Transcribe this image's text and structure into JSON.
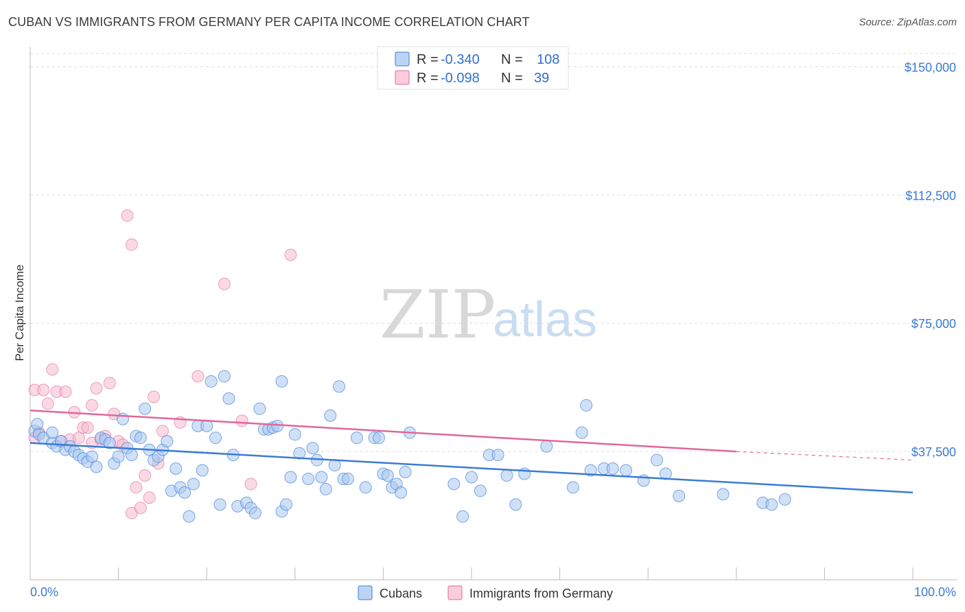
{
  "title": "CUBAN VS IMMIGRANTS FROM GERMANY PER CAPITA INCOME CORRELATION CHART",
  "source": "Source: ZipAtlas.com",
  "watermark": {
    "zip": "ZIP",
    "atlas": "atlas"
  },
  "colors": {
    "blue": "#3a7bd5",
    "blue_fill": "#a9c8f0",
    "pink": "#e0679a",
    "pink_fill": "#f6b9cd",
    "grid": "#dddddd"
  },
  "legend": {
    "rows": [
      {
        "r_label": "R =",
        "r_value": "-0.340",
        "n_label": "N =",
        "n_value": "108",
        "series": "cubans"
      },
      {
        "r_label": "R =",
        "r_value": "-0.098",
        "n_label": "N =",
        "n_value": "39",
        "series": "germany"
      }
    ]
  },
  "bottom_legend": [
    "Cubans",
    "Immigrants from Germany"
  ],
  "chart_data": {
    "type": "scatter",
    "title": "CUBAN VS IMMIGRANTS FROM GERMANY PER CAPITA INCOME CORRELATION CHART",
    "xlabel": "",
    "ylabel": "Per Capita Income",
    "xlim": [
      0,
      100
    ],
    "ylim": [
      0,
      157500
    ],
    "x_tick_labels": [
      "0.0%",
      "100.0%"
    ],
    "y_ticks": [
      37500,
      75000,
      112500,
      150000
    ],
    "y_tick_labels": [
      "$37,500",
      "$75,000",
      "$112,500",
      "$150,000"
    ],
    "grid": true,
    "legend_position": "top-center",
    "series": [
      {
        "name": "Cubans",
        "color": "#3a7bd5",
        "trend": {
          "x": [
            0,
            100
          ],
          "y": [
            40000,
            25500
          ]
        },
        "points": [
          [
            0.5,
            43500
          ],
          [
            0.8,
            45500
          ],
          [
            1.0,
            42500
          ],
          [
            1.5,
            41500
          ],
          [
            2.5,
            40000
          ],
          [
            2.5,
            43000
          ],
          [
            3.0,
            39000
          ],
          [
            3.5,
            40500
          ],
          [
            4.0,
            38000
          ],
          [
            4.5,
            39000
          ],
          [
            5.0,
            37500
          ],
          [
            5.5,
            36500
          ],
          [
            6.0,
            35500
          ],
          [
            6.5,
            34500
          ],
          [
            7.0,
            36000
          ],
          [
            7.5,
            33000
          ],
          [
            8.0,
            41500
          ],
          [
            8.5,
            41000
          ],
          [
            9.0,
            40000
          ],
          [
            9.5,
            34000
          ],
          [
            10.0,
            36000
          ],
          [
            10.5,
            47000
          ],
          [
            11.0,
            38500
          ],
          [
            11.5,
            36500
          ],
          [
            12.0,
            42000
          ],
          [
            12.5,
            41500
          ],
          [
            13.0,
            50000
          ],
          [
            13.5,
            38000
          ],
          [
            14.0,
            35000
          ],
          [
            14.5,
            36000
          ],
          [
            15.0,
            38000
          ],
          [
            15.5,
            40500
          ],
          [
            16.0,
            26000
          ],
          [
            16.5,
            32500
          ],
          [
            17.0,
            27000
          ],
          [
            17.5,
            25500
          ],
          [
            18.0,
            18500
          ],
          [
            18.5,
            28000
          ],
          [
            19.0,
            45000
          ],
          [
            19.5,
            32000
          ],
          [
            20.0,
            45000
          ],
          [
            20.5,
            58000
          ],
          [
            21.0,
            41500
          ],
          [
            21.5,
            22000
          ],
          [
            22.0,
            59500
          ],
          [
            22.5,
            53000
          ],
          [
            23.0,
            36500
          ],
          [
            23.5,
            21500
          ],
          [
            24.5,
            22500
          ],
          [
            25.0,
            21000
          ],
          [
            25.5,
            19500
          ],
          [
            26.0,
            50000
          ],
          [
            26.5,
            44000
          ],
          [
            27.0,
            44000
          ],
          [
            27.5,
            44500
          ],
          [
            28.0,
            45000
          ],
          [
            28.5,
            58000
          ],
          [
            28.5,
            20000
          ],
          [
            29.0,
            22000
          ],
          [
            29.5,
            30000
          ],
          [
            30.0,
            42500
          ],
          [
            30.5,
            37000
          ],
          [
            31.5,
            29500
          ],
          [
            32.0,
            38500
          ],
          [
            32.5,
            35000
          ],
          [
            33.0,
            30000
          ],
          [
            33.5,
            26500
          ],
          [
            34.0,
            48000
          ],
          [
            34.5,
            33500
          ],
          [
            35.0,
            56500
          ],
          [
            35.5,
            29500
          ],
          [
            36.0,
            29500
          ],
          [
            37.0,
            41500
          ],
          [
            38.0,
            27000
          ],
          [
            39.0,
            41500
          ],
          [
            39.5,
            41500
          ],
          [
            40.0,
            31000
          ],
          [
            40.5,
            30500
          ],
          [
            41.0,
            27000
          ],
          [
            41.5,
            28000
          ],
          [
            42.0,
            25500
          ],
          [
            42.5,
            31500
          ],
          [
            43.0,
            43000
          ],
          [
            48.0,
            28000
          ],
          [
            49.0,
            18500
          ],
          [
            50.0,
            30000
          ],
          [
            51.0,
            26000
          ],
          [
            52.0,
            36500
          ],
          [
            53.0,
            36500
          ],
          [
            54.0,
            30500
          ],
          [
            55.0,
            22000
          ],
          [
            56.0,
            31000
          ],
          [
            58.5,
            39000
          ],
          [
            61.5,
            27000
          ],
          [
            62.5,
            43000
          ],
          [
            63.5,
            32000
          ],
          [
            65.0,
            32500
          ],
          [
            66.0,
            32500
          ],
          [
            67.5,
            32000
          ],
          [
            69.5,
            29000
          ],
          [
            71.0,
            35000
          ],
          [
            72.0,
            31000
          ],
          [
            73.5,
            24500
          ],
          [
            78.5,
            25000
          ],
          [
            83.0,
            22500
          ],
          [
            84.0,
            22000
          ],
          [
            85.5,
            23500
          ],
          [
            63.0,
            51000
          ]
        ]
      },
      {
        "name": "Immigrants from Germany",
        "color": "#e0679a",
        "trend": {
          "x": [
            0,
            80
          ],
          "y": [
            49500,
            37500
          ]
        },
        "trend_dashed": {
          "x": [
            80,
            100
          ],
          "y": [
            37500,
            35000
          ]
        },
        "points": [
          [
            0.5,
            41500
          ],
          [
            0.5,
            55500
          ],
          [
            1.0,
            43000
          ],
          [
            1.5,
            55500
          ],
          [
            2.0,
            51500
          ],
          [
            2.5,
            61500
          ],
          [
            3.0,
            55000
          ],
          [
            3.5,
            40500
          ],
          [
            4.0,
            55000
          ],
          [
            4.5,
            41000
          ],
          [
            5.0,
            49000
          ],
          [
            5.5,
            41500
          ],
          [
            6.0,
            44500
          ],
          [
            6.5,
            44500
          ],
          [
            7.0,
            40000
          ],
          [
            7.0,
            51000
          ],
          [
            7.5,
            56000
          ],
          [
            8.0,
            41000
          ],
          [
            8.5,
            42000
          ],
          [
            9.0,
            57500
          ],
          [
            9.5,
            48500
          ],
          [
            10.0,
            40500
          ],
          [
            10.5,
            39500
          ],
          [
            11.0,
            106500
          ],
          [
            11.5,
            19500
          ],
          [
            11.5,
            98000
          ],
          [
            12.0,
            27000
          ],
          [
            12.5,
            21000
          ],
          [
            13.0,
            30500
          ],
          [
            13.5,
            24000
          ],
          [
            14.0,
            53500
          ],
          [
            14.5,
            34000
          ],
          [
            15.0,
            43500
          ],
          [
            17.0,
            46000
          ],
          [
            19.0,
            59500
          ],
          [
            22.0,
            86500
          ],
          [
            24.0,
            46500
          ],
          [
            25.0,
            28000
          ],
          [
            29.5,
            95000
          ]
        ]
      }
    ]
  }
}
